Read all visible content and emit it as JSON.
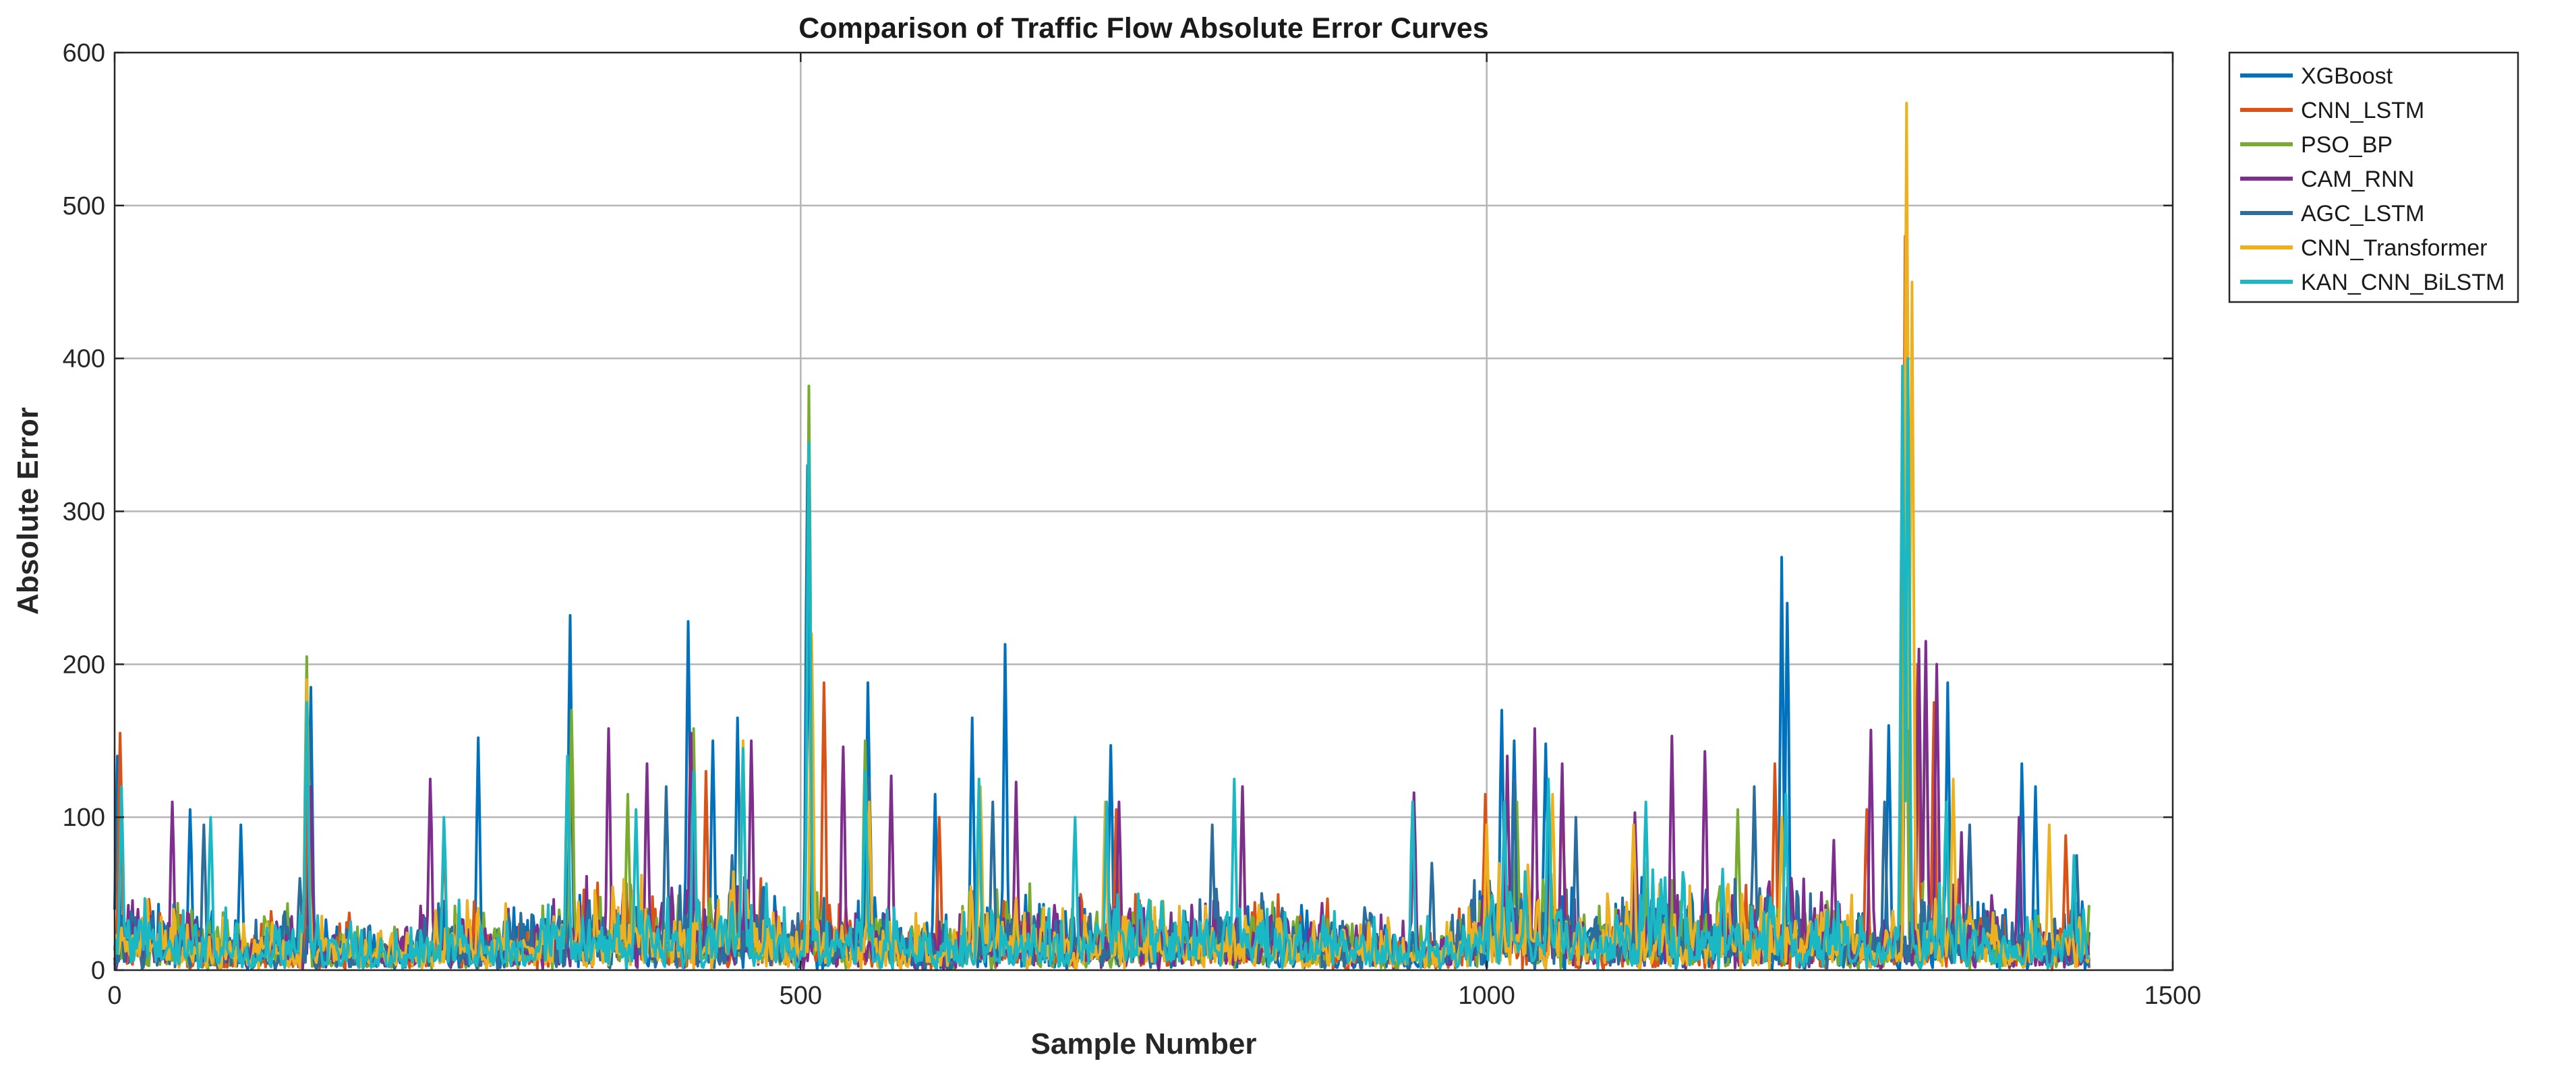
{
  "chart_data": {
    "type": "line",
    "title": "Comparison of Traffic Flow Absolute Error Curves",
    "xlabel": "Sample Number",
    "ylabel": "Absolute Error",
    "xlim": [
      0,
      1500
    ],
    "ylim": [
      0,
      600
    ],
    "xticks": [
      0,
      500,
      1000,
      1500
    ],
    "yticks": [
      0,
      100,
      200,
      300,
      400,
      500,
      600
    ],
    "grid": true,
    "legend_position": "outside-top-right",
    "n_samples": 1440,
    "baseline_envelope": [
      [
        0,
        60
      ],
      [
        40,
        50
      ],
      [
        100,
        40
      ],
      [
        140,
        45
      ],
      [
        200,
        30
      ],
      [
        240,
        55
      ],
      [
        300,
        45
      ],
      [
        340,
        60
      ],
      [
        380,
        70
      ],
      [
        420,
        55
      ],
      [
        460,
        70
      ],
      [
        490,
        50
      ],
      [
        520,
        50
      ],
      [
        560,
        55
      ],
      [
        600,
        40
      ],
      [
        640,
        65
      ],
      [
        700,
        55
      ],
      [
        760,
        55
      ],
      [
        800,
        55
      ],
      [
        850,
        55
      ],
      [
        900,
        50
      ],
      [
        960,
        30
      ],
      [
        1000,
        70
      ],
      [
        1040,
        80
      ],
      [
        1080,
        50
      ],
      [
        1120,
        70
      ],
      [
        1160,
        60
      ],
      [
        1200,
        70
      ],
      [
        1240,
        60
      ],
      [
        1280,
        40
      ],
      [
        1300,
        40
      ],
      [
        1340,
        70
      ],
      [
        1380,
        40
      ],
      [
        1440,
        50
      ]
    ],
    "series": [
      {
        "name": "XGBoost",
        "color": "#0072BD",
        "peaks": [
          [
            2,
            140
          ],
          [
            55,
            105
          ],
          [
            92,
            95
          ],
          [
            143,
            185
          ],
          [
            265,
            152
          ],
          [
            332,
            232
          ],
          [
            418,
            228
          ],
          [
            436,
            150
          ],
          [
            454,
            165
          ],
          [
            505,
            330
          ],
          [
            549,
            188
          ],
          [
            598,
            115
          ],
          [
            625,
            165
          ],
          [
            649,
            213
          ],
          [
            726,
            147
          ],
          [
            1011,
            170
          ],
          [
            1020,
            150
          ],
          [
            1043,
            148
          ],
          [
            1215,
            270
          ],
          [
            1219,
            240
          ],
          [
            1293,
            160
          ],
          [
            1306,
            400
          ],
          [
            1336,
            188
          ],
          [
            1390,
            135
          ],
          [
            1400,
            120
          ]
        ]
      },
      {
        "name": "CNN_LSTM",
        "color": "#D95319",
        "peaks": [
          [
            4,
            155
          ],
          [
            141,
            160
          ],
          [
            240,
            90
          ],
          [
            333,
            165
          ],
          [
            431,
            130
          ],
          [
            517,
            188
          ],
          [
            601,
            100
          ],
          [
            730,
            105
          ],
          [
            999,
            115
          ],
          [
            1055,
            130
          ],
          [
            1210,
            135
          ],
          [
            1277,
            105
          ],
          [
            1305,
            480
          ],
          [
            1314,
            200
          ],
          [
            1326,
            175
          ],
          [
            1422,
            88
          ]
        ]
      },
      {
        "name": "PSO_BP",
        "color": "#77AC30",
        "peaks": [
          [
            140,
            205
          ],
          [
            333,
            170
          ],
          [
            374,
            115
          ],
          [
            422,
            158
          ],
          [
            506,
            382
          ],
          [
            547,
            150
          ],
          [
            822,
            120
          ],
          [
            1022,
            110
          ],
          [
            1183,
            105
          ],
          [
            1305,
            390
          ],
          [
            1320,
            205
          ]
        ]
      },
      {
        "name": "CAM_RNN",
        "color": "#7E2F8E",
        "peaks": [
          [
            42,
            110
          ],
          [
            143,
            120
          ],
          [
            230,
            125
          ],
          [
            360,
            158
          ],
          [
            388,
            135
          ],
          [
            420,
            155
          ],
          [
            464,
            150
          ],
          [
            531,
            146
          ],
          [
            566,
            127
          ],
          [
            657,
            123
          ],
          [
            732,
            110
          ],
          [
            822,
            120
          ],
          [
            947,
            116
          ],
          [
            1015,
            140
          ],
          [
            1035,
            158
          ],
          [
            1055,
            135
          ],
          [
            1108,
            103
          ],
          [
            1135,
            153
          ],
          [
            1159,
            143
          ],
          [
            1253,
            85
          ],
          [
            1280,
            157
          ],
          [
            1315,
            210
          ],
          [
            1320,
            215
          ],
          [
            1328,
            200
          ],
          [
            1346,
            90
          ],
          [
            1388,
            100
          ]
        ]
      },
      {
        "name": "AGC_LSTM",
        "color": "#2B6E9E",
        "peaks": [
          [
            65,
            95
          ],
          [
            135,
            60
          ],
          [
            402,
            120
          ],
          [
            450,
            75
          ],
          [
            550,
            125
          ],
          [
            640,
            110
          ],
          [
            800,
            95
          ],
          [
            960,
            70
          ],
          [
            1020,
            125
          ],
          [
            1065,
            100
          ],
          [
            1195,
            120
          ],
          [
            1290,
            110
          ],
          [
            1352,
            95
          ],
          [
            1430,
            75
          ]
        ]
      },
      {
        "name": "CNN_Transformer",
        "color": "#EDB120",
        "peaks": [
          [
            140,
            190
          ],
          [
            330,
            120
          ],
          [
            458,
            150
          ],
          [
            508,
            220
          ],
          [
            550,
            110
          ],
          [
            631,
            120
          ],
          [
            722,
            110
          ],
          [
            1000,
            95
          ],
          [
            1048,
            115
          ],
          [
            1107,
            95
          ],
          [
            1215,
            100
          ],
          [
            1306,
            567
          ],
          [
            1310,
            450
          ],
          [
            1340,
            125
          ],
          [
            1410,
            95
          ]
        ]
      },
      {
        "name": "KAN_CNN_BiLSTM",
        "color": "#1AB8C4",
        "peaks": [
          [
            5,
            120
          ],
          [
            70,
            100
          ],
          [
            140,
            175
          ],
          [
            240,
            100
          ],
          [
            330,
            140
          ],
          [
            380,
            105
          ],
          [
            422,
            130
          ],
          [
            458,
            145
          ],
          [
            506,
            345
          ],
          [
            547,
            130
          ],
          [
            630,
            125
          ],
          [
            700,
            100
          ],
          [
            723,
            110
          ],
          [
            816,
            125
          ],
          [
            946,
            110
          ],
          [
            1013,
            110
          ],
          [
            1045,
            125
          ],
          [
            1116,
            110
          ],
          [
            1218,
            115
          ],
          [
            1303,
            395
          ],
          [
            1307,
            400
          ],
          [
            1335,
            110
          ],
          [
            1428,
            75
          ]
        ]
      }
    ]
  }
}
